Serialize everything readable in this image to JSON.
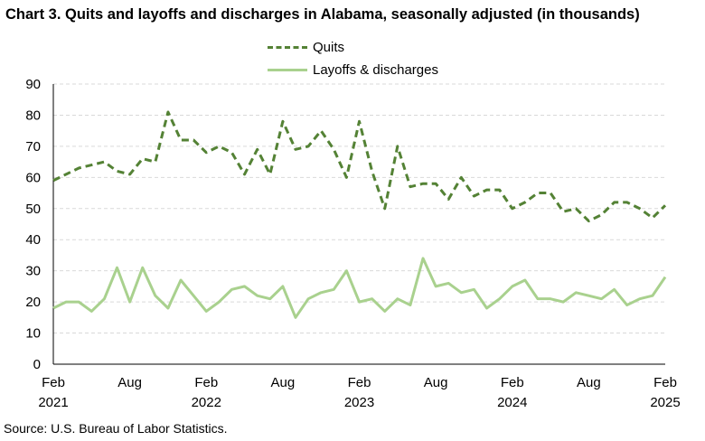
{
  "title": "Chart 3. Quits and layoffs and discharges in Alabama, seasonally adjusted (in thousands)",
  "source": "Source: U.S. Bureau of Labor Statistics.",
  "chart_data": {
    "type": "line",
    "ylim": [
      0,
      90
    ],
    "yticks": [
      0,
      10,
      20,
      30,
      40,
      50,
      60,
      70,
      80,
      90
    ],
    "grid": true,
    "legend_position": "top-center",
    "x_tick_labels": [
      {
        "month": "Feb",
        "year": "2021"
      },
      {
        "month": "Aug",
        "year": ""
      },
      {
        "month": "Feb",
        "year": "2022"
      },
      {
        "month": "Aug",
        "year": ""
      },
      {
        "month": "Feb",
        "year": "2023"
      },
      {
        "month": "Aug",
        "year": ""
      },
      {
        "month": "Feb",
        "year": "2024"
      },
      {
        "month": "Aug",
        "year": ""
      },
      {
        "month": "Feb",
        "year": "2025"
      }
    ],
    "x": [
      "2021-02",
      "2021-03",
      "2021-04",
      "2021-05",
      "2021-06",
      "2021-07",
      "2021-08",
      "2021-09",
      "2021-10",
      "2021-11",
      "2021-12",
      "2022-01",
      "2022-02",
      "2022-03",
      "2022-04",
      "2022-05",
      "2022-06",
      "2022-07",
      "2022-08",
      "2022-09",
      "2022-10",
      "2022-11",
      "2022-12",
      "2023-01",
      "2023-02",
      "2023-03",
      "2023-04",
      "2023-05",
      "2023-06",
      "2023-07",
      "2023-08",
      "2023-09",
      "2023-10",
      "2023-11",
      "2023-12",
      "2024-01",
      "2024-02",
      "2024-03",
      "2024-04",
      "2024-05",
      "2024-06",
      "2024-07",
      "2024-08",
      "2024-09",
      "2024-10",
      "2024-11",
      "2024-12",
      "2025-01",
      "2025-02"
    ],
    "series": [
      {
        "name": "Quits",
        "color": "#548235",
        "style": "dashed",
        "values": [
          59,
          61,
          63,
          64,
          65,
          62,
          61,
          66,
          65,
          81,
          72,
          72,
          68,
          70,
          68,
          61,
          69,
          61,
          78,
          69,
          70,
          75,
          69,
          60,
          78,
          62,
          50,
          70,
          57,
          58,
          58,
          53,
          60,
          54,
          56,
          56,
          50,
          52,
          55,
          55,
          49,
          50,
          46,
          48,
          52,
          52,
          50,
          47,
          51
        ]
      },
      {
        "name": "Layoffs & discharges",
        "color": "#a9d18e",
        "style": "solid",
        "values": [
          18,
          20,
          20,
          17,
          21,
          31,
          20,
          31,
          22,
          18,
          27,
          22,
          17,
          20,
          24,
          25,
          22,
          21,
          25,
          15,
          21,
          23,
          24,
          30,
          20,
          21,
          17,
          21,
          19,
          34,
          25,
          26,
          23,
          24,
          18,
          21,
          25,
          27,
          21,
          21,
          20,
          23,
          22,
          21,
          24,
          19,
          21,
          22,
          28
        ]
      }
    ]
  }
}
